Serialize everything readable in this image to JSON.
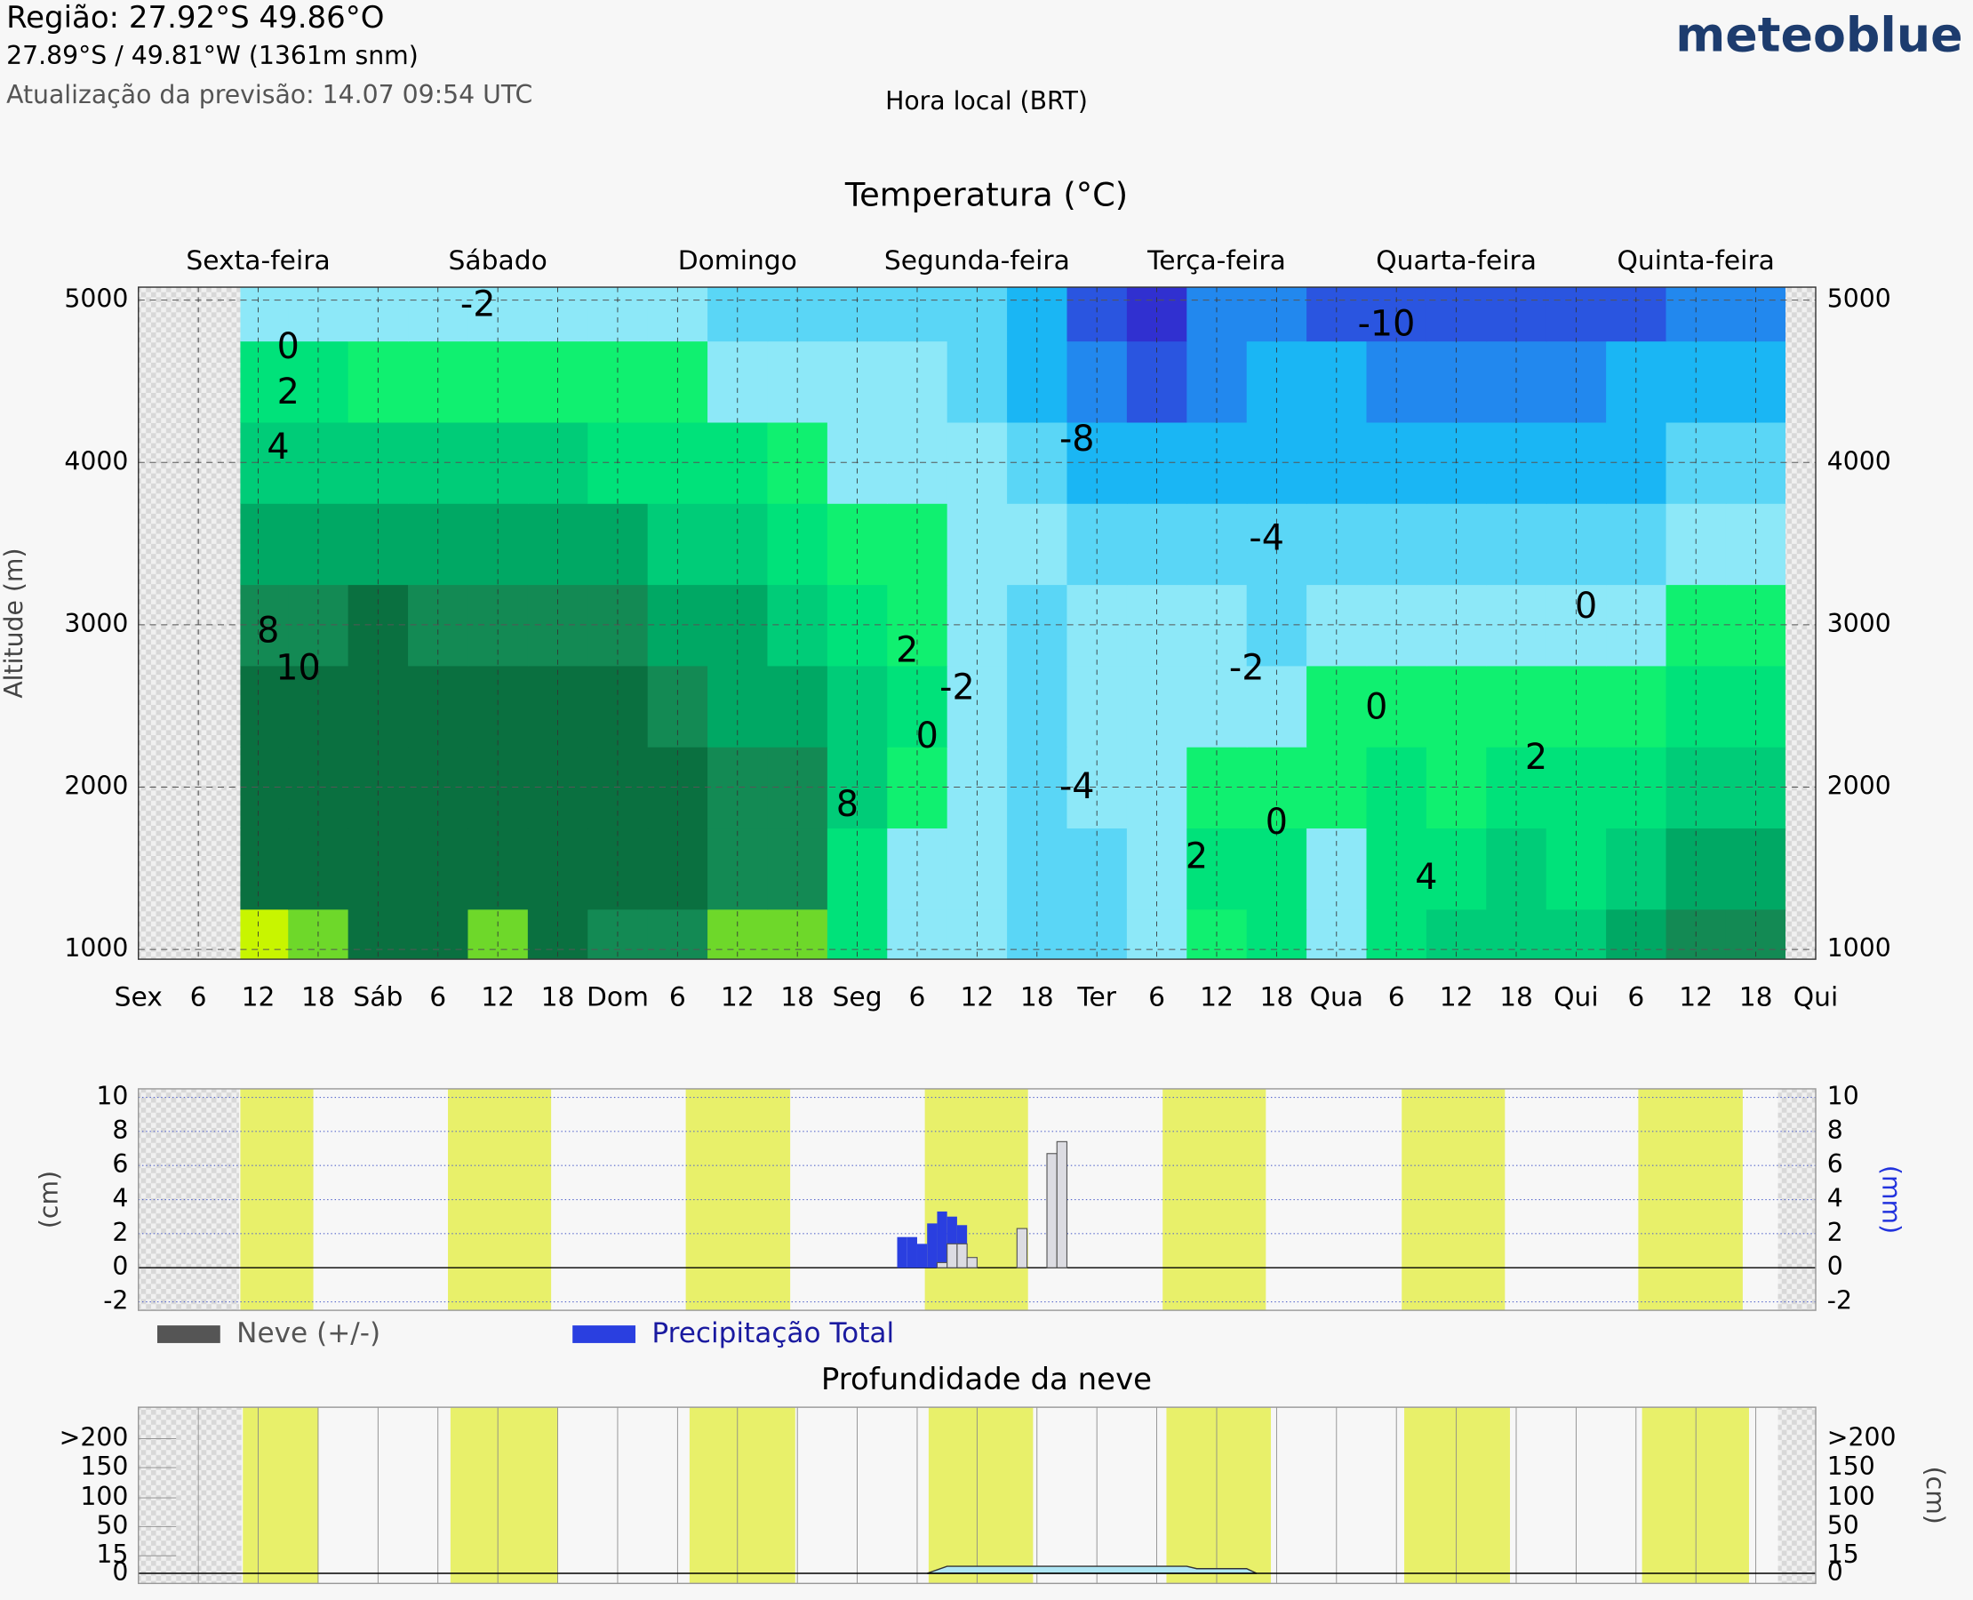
{
  "header": {
    "region": "Região: 27.92°S 49.86°O",
    "coords": "27.89°S / 49.81°W (1361m snm)",
    "update": "Atualização da previsão: 14.07 09:54 UTC",
    "time_zone": "Hora local (BRT)",
    "logo": "meteoblue"
  },
  "chart_data": [
    {
      "type": "contour",
      "title": "Temperatura  (°C)",
      "ylabel": "Altitude (m)",
      "xlim": [
        0,
        168
      ],
      "ylim": [
        940,
        5080
      ],
      "xticks": [
        {
          "value": 0,
          "label": "Sex"
        },
        {
          "value": 6,
          "label": "6"
        },
        {
          "value": 12,
          "label": "12"
        },
        {
          "value": 18,
          "label": "18"
        },
        {
          "value": 24,
          "label": "Sáb"
        },
        {
          "value": 30,
          "label": "6"
        },
        {
          "value": 36,
          "label": "12"
        },
        {
          "value": 42,
          "label": "18"
        },
        {
          "value": 48,
          "label": "Dom"
        },
        {
          "value": 54,
          "label": "6"
        },
        {
          "value": 60,
          "label": "12"
        },
        {
          "value": 66,
          "label": "18"
        },
        {
          "value": 72,
          "label": "Seg"
        },
        {
          "value": 78,
          "label": "6"
        },
        {
          "value": 84,
          "label": "12"
        },
        {
          "value": 90,
          "label": "18"
        },
        {
          "value": 96,
          "label": "Ter"
        },
        {
          "value": 102,
          "label": "6"
        },
        {
          "value": 108,
          "label": "12"
        },
        {
          "value": 114,
          "label": "18"
        },
        {
          "value": 120,
          "label": "Qua"
        },
        {
          "value": 126,
          "label": "6"
        },
        {
          "value": 132,
          "label": "12"
        },
        {
          "value": 138,
          "label": "18"
        },
        {
          "value": 144,
          "label": "Qui"
        },
        {
          "value": 150,
          "label": "6"
        },
        {
          "value": 156,
          "label": "12"
        },
        {
          "value": 162,
          "label": "18"
        },
        {
          "value": 168,
          "label": "Qui"
        }
      ],
      "yticks": [
        1000,
        2000,
        3000,
        4000,
        5000
      ],
      "grid": true,
      "day_labels": [
        {
          "value": 12,
          "label": "Sexta-feira"
        },
        {
          "value": 36,
          "label": "Sábado"
        },
        {
          "value": 60,
          "label": "Domingo"
        },
        {
          "value": 84,
          "label": "Segunda-feira"
        },
        {
          "value": 108,
          "label": "Terça-feira"
        },
        {
          "value": 132,
          "label": "Quarta-feira"
        },
        {
          "value": 156,
          "label": "Quinta-feira"
        }
      ],
      "x": [
        12,
        18,
        24,
        30,
        36,
        42,
        48,
        54,
        60,
        66,
        72,
        78,
        84,
        90,
        96,
        102,
        108,
        114,
        120,
        126,
        132,
        138,
        144,
        150,
        156,
        162
      ],
      "y": [
        1000,
        1500,
        2000,
        2500,
        3000,
        3500,
        4000,
        4500,
        5000
      ],
      "z": [
        [
          14,
          12,
          10,
          10,
          12,
          10,
          9,
          9,
          12,
          12,
          3,
          -1,
          -1,
          -3,
          -3,
          -1,
          1,
          3,
          -1,
          2,
          4,
          5,
          4,
          6,
          8,
          9
        ],
        [
          10,
          11,
          10,
          10,
          11,
          10,
          10,
          10,
          9,
          9,
          3,
          -1,
          -2,
          -4,
          -3,
          -0.5,
          2,
          2,
          -1,
          3,
          3,
          4,
          3,
          4,
          6,
          7
        ],
        [
          10,
          11,
          11,
          10,
          10,
          10,
          10,
          10,
          8,
          8,
          4,
          0,
          -2,
          -3,
          -1.5,
          -1,
          1,
          0.5,
          1,
          2,
          1,
          2,
          2,
          3,
          4,
          5
        ],
        [
          10,
          10,
          11,
          10,
          10,
          10,
          10,
          9,
          7,
          6,
          4,
          2,
          -2,
          -3,
          -2,
          -1,
          -1,
          -1,
          0.5,
          0.5,
          0.5,
          0.5,
          1,
          1,
          2,
          3
        ],
        [
          8,
          9,
          10,
          9,
          8,
          9,
          8,
          7,
          6,
          5,
          2,
          1.5,
          -1.5,
          -3,
          -2,
          -2,
          -2,
          -3,
          -2,
          -2,
          -2,
          -1,
          -0.5,
          -1,
          0.5,
          1
        ],
        [
          6,
          7,
          7,
          6,
          6,
          7,
          6,
          5,
          4,
          3,
          1,
          0.5,
          -1,
          -2,
          -3,
          -4,
          -4,
          -4,
          -3,
          -3,
          -3,
          -3,
          -3,
          -3,
          -2,
          -1
        ],
        [
          4,
          5,
          4,
          4,
          4,
          4,
          3,
          3,
          2,
          1,
          -0.5,
          -1,
          -2,
          -3,
          -5,
          -6,
          -5,
          -5,
          -5,
          -5,
          -5,
          -5,
          -5,
          -5,
          -4,
          -4
        ],
        [
          2,
          2,
          1,
          1,
          1,
          1,
          0.5,
          0,
          -0.5,
          -1,
          -2,
          -2,
          -3,
          -5,
          -7,
          -9,
          -7,
          -6,
          -6,
          -7,
          -8,
          -7,
          -7,
          -6,
          -6,
          -6
        ],
        [
          -1,
          -1,
          -1,
          -1,
          -1,
          -2,
          -2,
          -2,
          -3,
          -3,
          -3,
          -4,
          -4,
          -6,
          -9,
          -11,
          -8,
          -7,
          -9,
          -10,
          -10,
          -10,
          -9,
          -9,
          -8,
          -8
        ]
      ],
      "levels": [
        -14,
        -12,
        -10,
        -8,
        -6,
        -4,
        -2,
        0,
        2,
        4,
        6,
        8,
        10,
        12,
        14,
        16
      ],
      "colors": [
        "#6a10c8",
        "#3030d0",
        "#2a55e0",
        "#2288ee",
        "#1ab6f4",
        "#5ad6f6",
        "#8de8f8",
        "#10f070",
        "#00e27a",
        "#00cc78",
        "#00a864",
        "#138a54",
        "#0a7040",
        "#6ed82a",
        "#c8f500"
      ],
      "contour_labels": [
        {
          "value": -2,
          "x": 34,
          "y": 4960
        },
        {
          "value": 0,
          "x": 15,
          "y": 4700
        },
        {
          "value": 2,
          "x": 15,
          "y": 4420
        },
        {
          "value": 4,
          "x": 14,
          "y": 4080
        },
        {
          "value": 8,
          "x": 13,
          "y": 2950
        },
        {
          "value": 10,
          "x": 16,
          "y": 2720
        },
        {
          "value": -10,
          "x": 125,
          "y": 4840
        },
        {
          "value": -8,
          "x": 94,
          "y": 4130
        },
        {
          "value": -4,
          "x": 113,
          "y": 3520
        },
        {
          "value": -2,
          "x": 111,
          "y": 2720
        },
        {
          "value": 2,
          "x": 77,
          "y": 2830
        },
        {
          "value": 0,
          "x": 79,
          "y": 2300
        },
        {
          "value": -2,
          "x": 82,
          "y": 2600
        },
        {
          "value": -4,
          "x": 94,
          "y": 1990
        },
        {
          "value": 8,
          "x": 71,
          "y": 1880
        },
        {
          "value": 2,
          "x": 106,
          "y": 1560
        },
        {
          "value": 0,
          "x": 114,
          "y": 1770
        },
        {
          "value": 0,
          "x": 124,
          "y": 2480
        },
        {
          "value": 2,
          "x": 140,
          "y": 2170
        },
        {
          "value": 4,
          "x": 129,
          "y": 1430
        },
        {
          "value": 0,
          "x": 145,
          "y": 3100
        }
      ]
    },
    {
      "type": "bar",
      "ylabel": "(cm)",
      "y2label": "(mm)",
      "xlim": [
        0,
        168
      ],
      "ylim": [
        -2.5,
        10.5
      ],
      "yticks": [
        -2,
        0,
        2,
        4,
        6,
        8,
        10
      ],
      "y2lim": [
        -2.5,
        10.5
      ],
      "y2ticks": [
        -2,
        0,
        2,
        4,
        6,
        8,
        10
      ],
      "series": [
        {
          "name": "Precipitação Total",
          "color": "#2a3fe0",
          "axis": "y2",
          "x": [
            76,
            77,
            78,
            79,
            80,
            81,
            82
          ],
          "values": [
            1.8,
            1.8,
            1.4,
            2.6,
            3.3,
            3.0,
            2.5
          ]
        },
        {
          "name": "Neve (+/-)",
          "color": "#555555",
          "x": [
            80,
            81,
            82,
            83,
            84,
            85,
            86,
            87,
            88,
            89,
            90,
            91,
            92
          ],
          "values": [
            0.3,
            1.4,
            1.4,
            0.6,
            0,
            0,
            0,
            0,
            2.3,
            0,
            0,
            6.7,
            7.4
          ]
        }
      ]
    },
    {
      "type": "area",
      "title": "Profundidade da neve",
      "ylabel": "(cm)",
      "color": "#aee6f5",
      "xlim": [
        0,
        168
      ],
      "ylim": [
        0,
        250
      ],
      "yticks": [
        0,
        15,
        50,
        100,
        150,
        {
          "value": 200,
          "label": ">200"
        }
      ],
      "x": [
        79,
        81,
        105,
        106,
        111,
        112
      ],
      "values": [
        0,
        6,
        6,
        4,
        4,
        0
      ]
    }
  ]
}
